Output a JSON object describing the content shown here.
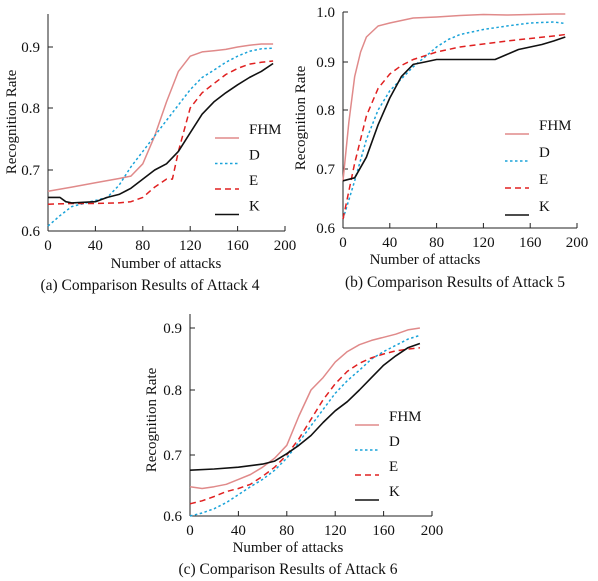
{
  "figure": {
    "colors": {
      "FHM": "#e08a8a",
      "D": "#1aa3d9",
      "E": "#e02020",
      "K": "#111111"
    }
  },
  "chart_data": [
    {
      "id": "a",
      "type": "line",
      "caption": "(a) Comparison Results of Attack 4",
      "xlabel": "Number of attacks",
      "ylabel": "Recognition Rate",
      "xlim": [
        0,
        200
      ],
      "ylim": [
        0.6,
        0.95
      ],
      "xticks": [
        0,
        40,
        80,
        120,
        160,
        200
      ],
      "yticks": [
        0.6,
        0.7,
        0.8,
        0.9
      ],
      "ytick_labels": [
        "0.6",
        "0.7",
        "0.8",
        "0.9"
      ],
      "legend": [
        "FHM",
        "D",
        "E",
        "K"
      ],
      "legend_position": "right",
      "series": [
        {
          "name": "FHM",
          "style": "solid",
          "x": [
            0,
            20,
            40,
            60,
            70,
            80,
            90,
            100,
            110,
            120,
            130,
            140,
            150,
            160,
            170,
            180,
            190
          ],
          "y": [
            0.665,
            0.672,
            0.679,
            0.686,
            0.69,
            0.71,
            0.755,
            0.81,
            0.86,
            0.885,
            0.892,
            0.894,
            0.896,
            0.9,
            0.903,
            0.905,
            0.905
          ]
        },
        {
          "name": "D",
          "style": "dotted",
          "x": [
            0,
            10,
            20,
            30,
            40,
            50,
            60,
            70,
            80,
            90,
            100,
            110,
            120,
            130,
            140,
            150,
            160,
            170,
            180,
            190
          ],
          "y": [
            0.608,
            0.625,
            0.64,
            0.645,
            0.65,
            0.655,
            0.675,
            0.705,
            0.73,
            0.755,
            0.78,
            0.805,
            0.83,
            0.85,
            0.862,
            0.875,
            0.885,
            0.893,
            0.897,
            0.898
          ]
        },
        {
          "name": "E",
          "style": "dashed",
          "x": [
            0,
            20,
            40,
            60,
            70,
            80,
            90,
            100,
            105,
            110,
            120,
            130,
            140,
            150,
            160,
            170,
            180,
            190
          ],
          "y": [
            0.644,
            0.645,
            0.645,
            0.646,
            0.648,
            0.655,
            0.672,
            0.685,
            0.685,
            0.73,
            0.8,
            0.825,
            0.84,
            0.855,
            0.865,
            0.872,
            0.875,
            0.877
          ]
        },
        {
          "name": "K",
          "style": "solid",
          "x": [
            0,
            10,
            15,
            20,
            40,
            50,
            60,
            70,
            80,
            90,
            100,
            110,
            120,
            130,
            140,
            150,
            160,
            170,
            180,
            190
          ],
          "y": [
            0.655,
            0.655,
            0.648,
            0.646,
            0.648,
            0.655,
            0.66,
            0.67,
            0.685,
            0.7,
            0.71,
            0.73,
            0.76,
            0.79,
            0.81,
            0.825,
            0.838,
            0.85,
            0.86,
            0.873
          ]
        }
      ]
    },
    {
      "id": "b",
      "type": "line",
      "caption": "(b) Comparison Results of Attack 5",
      "xlabel": "Number of attacks",
      "ylabel": "Recognition Rate",
      "xlim": [
        0,
        200
      ],
      "ylim": [
        0.6,
        1.0
      ],
      "xticks": [
        0,
        40,
        80,
        120,
        160,
        200
      ],
      "yticks": [
        0.6,
        0.7,
        0.8,
        0.9,
        1.0
      ],
      "ytick_labels": [
        "0.6",
        "0.7",
        "0.8",
        "0.9",
        "1.0"
      ],
      "legend": [
        "FHM",
        "D",
        "E",
        "K"
      ],
      "legend_position": "right",
      "series": [
        {
          "name": "FHM",
          "style": "solid",
          "x": [
            0,
            5,
            10,
            15,
            20,
            30,
            40,
            60,
            80,
            100,
            120,
            140,
            160,
            180,
            190
          ],
          "y": [
            0.68,
            0.78,
            0.87,
            0.92,
            0.95,
            0.972,
            0.978,
            0.988,
            0.99,
            0.993,
            0.995,
            0.994,
            0.995,
            0.996,
            0.996
          ]
        },
        {
          "name": "D",
          "style": "dotted",
          "x": [
            0,
            10,
            20,
            30,
            40,
            50,
            60,
            70,
            80,
            90,
            100,
            120,
            140,
            160,
            180,
            190
          ],
          "y": [
            0.615,
            0.68,
            0.75,
            0.8,
            0.84,
            0.865,
            0.89,
            0.91,
            0.93,
            0.945,
            0.955,
            0.965,
            0.972,
            0.978,
            0.98,
            0.977
          ]
        },
        {
          "name": "E",
          "style": "dashed",
          "x": [
            0,
            10,
            20,
            30,
            40,
            50,
            60,
            80,
            100,
            120,
            140,
            160,
            180,
            190
          ],
          "y": [
            0.615,
            0.71,
            0.79,
            0.845,
            0.875,
            0.893,
            0.905,
            0.92,
            0.93,
            0.936,
            0.942,
            0.947,
            0.952,
            0.955
          ]
        },
        {
          "name": "K",
          "style": "solid",
          "x": [
            0,
            10,
            20,
            30,
            40,
            50,
            60,
            70,
            80,
            100,
            120,
            130,
            140,
            150,
            160,
            170,
            180,
            190
          ],
          "y": [
            0.68,
            0.685,
            0.72,
            0.775,
            0.825,
            0.87,
            0.895,
            0.9,
            0.905,
            0.905,
            0.905,
            0.905,
            0.915,
            0.925,
            0.93,
            0.935,
            0.942,
            0.95
          ]
        }
      ]
    },
    {
      "id": "c",
      "type": "line",
      "caption": "(c) Comparison Results of Attack 6",
      "xlabel": "Number of attacks",
      "ylabel": "Recognition Rate",
      "xlim": [
        0,
        200
      ],
      "ylim": [
        0.6,
        0.92
      ],
      "xticks": [
        0,
        40,
        80,
        120,
        160,
        200
      ],
      "yticks": [
        0.6,
        0.7,
        0.8,
        0.9
      ],
      "ytick_labels": [
        "0.6",
        "0.7",
        "0.8",
        "0.9"
      ],
      "legend": [
        "FHM",
        "D",
        "E",
        "K"
      ],
      "legend_position": "right",
      "series": [
        {
          "name": "FHM",
          "style": "solid",
          "x": [
            0,
            10,
            20,
            30,
            40,
            50,
            60,
            70,
            80,
            90,
            100,
            110,
            120,
            130,
            140,
            150,
            160,
            170,
            180,
            190
          ],
          "y": [
            0.648,
            0.645,
            0.648,
            0.652,
            0.66,
            0.668,
            0.68,
            0.695,
            0.715,
            0.76,
            0.8,
            0.82,
            0.845,
            0.862,
            0.873,
            0.88,
            0.885,
            0.89,
            0.897,
            0.9
          ]
        },
        {
          "name": "D",
          "style": "dotted",
          "x": [
            0,
            10,
            20,
            30,
            40,
            50,
            60,
            70,
            80,
            90,
            100,
            110,
            120,
            130,
            140,
            150,
            160,
            170,
            180,
            190
          ],
          "y": [
            0.6,
            0.605,
            0.612,
            0.622,
            0.635,
            0.648,
            0.66,
            0.675,
            0.695,
            0.72,
            0.745,
            0.77,
            0.795,
            0.815,
            0.832,
            0.85,
            0.862,
            0.872,
            0.882,
            0.888
          ]
        },
        {
          "name": "E",
          "style": "dashed",
          "x": [
            0,
            10,
            20,
            30,
            40,
            50,
            60,
            70,
            80,
            90,
            100,
            110,
            120,
            130,
            140,
            150,
            160,
            170,
            180,
            190
          ],
          "y": [
            0.62,
            0.625,
            0.632,
            0.64,
            0.645,
            0.652,
            0.665,
            0.68,
            0.7,
            0.725,
            0.755,
            0.785,
            0.81,
            0.83,
            0.843,
            0.852,
            0.858,
            0.863,
            0.866,
            0.868
          ]
        },
        {
          "name": "K",
          "style": "solid",
          "x": [
            0,
            20,
            40,
            60,
            70,
            80,
            90,
            100,
            110,
            120,
            130,
            140,
            150,
            160,
            170,
            180,
            190
          ],
          "y": [
            0.675,
            0.677,
            0.68,
            0.685,
            0.69,
            0.702,
            0.715,
            0.73,
            0.75,
            0.768,
            0.782,
            0.8,
            0.82,
            0.84,
            0.855,
            0.868,
            0.875
          ]
        }
      ]
    }
  ]
}
